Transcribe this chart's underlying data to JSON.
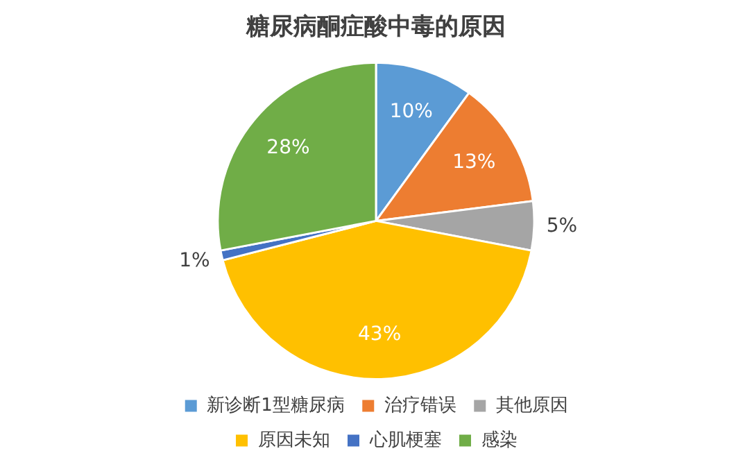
{
  "chart_data": {
    "type": "pie",
    "title": "糖尿病酮症酸中毒的原因",
    "categories": [
      "新诊断1型糖尿病",
      "治疗错误",
      "其他原因",
      "原因未知",
      "心肌梗塞",
      "感染"
    ],
    "values": [
      10,
      13,
      5,
      43,
      1,
      28
    ],
    "colors": [
      "#5b9bd5",
      "#ed7d31",
      "#a5a5a5",
      "#ffc000",
      "#4472c4",
      "#70ad47"
    ],
    "value_labels": [
      "10%",
      "13%",
      "5%",
      "43%",
      "1%",
      "28%"
    ],
    "legend": "bottom"
  }
}
